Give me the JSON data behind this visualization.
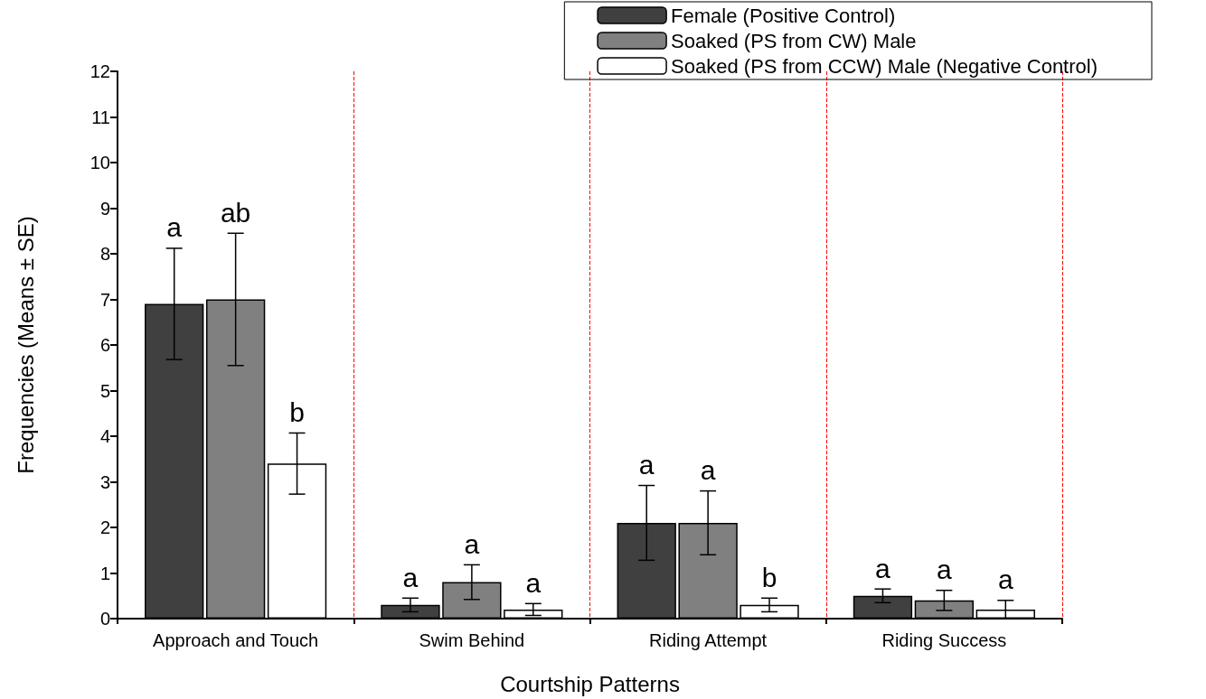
{
  "chart_data": {
    "type": "bar",
    "xlabel": "Courtship Patterns",
    "ylabel": "Frequencies (Means ± SE)",
    "categories": [
      "Approach and Touch",
      "Swim Behind",
      "Riding Attempt",
      "Riding Success"
    ],
    "series": [
      {
        "name": "Female (Positive Control)",
        "color": "#404040",
        "values": [
          6.9,
          0.3,
          2.1,
          0.5
        ],
        "errors": [
          1.22,
          0.15,
          0.82,
          0.15
        ],
        "value_labels": [
          "a",
          "a",
          "a",
          "a"
        ]
      },
      {
        "name": "Soaked (PS from CW) Male",
        "color": "#808080",
        "values": [
          7.0,
          0.8,
          2.1,
          0.4
        ],
        "errors": [
          1.45,
          0.38,
          0.7,
          0.22
        ],
        "value_labels": [
          "ab",
          "a",
          "a",
          "a"
        ]
      },
      {
        "name": "Soaked (PS from CCW) Male (Negative Control)",
        "color": "#ffffff",
        "values": [
          3.4,
          0.2,
          0.3,
          0.2
        ],
        "errors": [
          0.67,
          0.13,
          0.15,
          0.2
        ],
        "value_labels": [
          "b",
          "a",
          "b",
          "a"
        ]
      }
    ],
    "ylim": [
      0,
      12
    ],
    "yticks": [
      0,
      1,
      2,
      3,
      4,
      5,
      6,
      7,
      8,
      9,
      10,
      11,
      12
    ],
    "grid": "x",
    "legend": "top right"
  }
}
